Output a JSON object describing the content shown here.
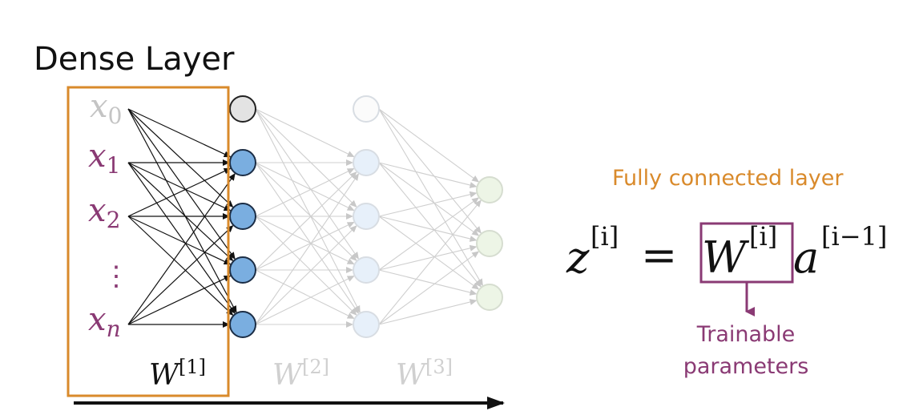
{
  "title": "Dense Layer",
  "colors": {
    "orange": "#d98a2b",
    "magenta": "#8a3a74",
    "blue_node": "#7aaee0",
    "light_gray": "#c8c8c8",
    "text_black": "#111111"
  },
  "inputs": {
    "x0": {
      "base": "x",
      "sub": "0"
    },
    "x1": {
      "base": "x",
      "sub": "1"
    },
    "x2": {
      "base": "x",
      "sub": "2"
    },
    "vdots": "⋮",
    "xn": {
      "base": "x",
      "sub": "n"
    }
  },
  "weights": {
    "w1": {
      "base": "W",
      "sup": "[1]"
    },
    "w2": {
      "base": "W",
      "sup": "[2]"
    },
    "w3": {
      "base": "W",
      "sup": "[3]"
    }
  },
  "annotation": {
    "fully_connected": "Fully connected layer",
    "eq_z": "z",
    "eq_z_sup": "[i]",
    "eq_equals": "=",
    "eq_W": "W",
    "eq_W_sup": "[i]",
    "eq_a": "a",
    "eq_a_sup": "[i−1]",
    "trainable_line1": "Trainable",
    "trainable_line2": "parameters"
  }
}
